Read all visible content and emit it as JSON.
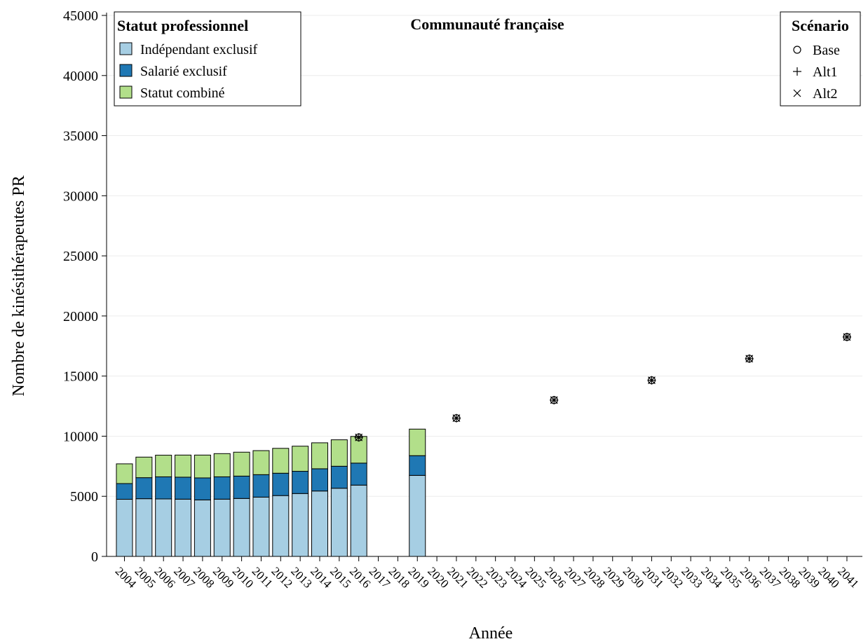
{
  "chart_data": {
    "type": "bar",
    "stacked": true,
    "title": "Communauté française",
    "xlabel": "Année",
    "ylabel": "Nombre de kinésithérapeutes PR",
    "ylim": [
      0,
      45000
    ],
    "yticks": [
      0,
      5000,
      10000,
      15000,
      20000,
      25000,
      30000,
      35000,
      40000,
      45000
    ],
    "categories": [
      "2004",
      "2005",
      "2006",
      "2007",
      "2008",
      "2009",
      "2010",
      "2011",
      "2012",
      "2013",
      "2014",
      "2015",
      "2016",
      "2017",
      "2018",
      "2019",
      "2020",
      "2021",
      "2022",
      "2023",
      "2024",
      "2025",
      "2026",
      "2027",
      "2028",
      "2029",
      "2030",
      "2031",
      "2032",
      "2033",
      "2034",
      "2035",
      "2036",
      "2037",
      "2038",
      "2039",
      "2040",
      "2041"
    ],
    "series": [
      {
        "name": "Indépendant exclusif",
        "color": "#a6cee3",
        "values": [
          4750,
          4800,
          4780,
          4760,
          4700,
          4760,
          4820,
          4930,
          5060,
          5230,
          5440,
          5670,
          5930,
          null,
          null,
          6740,
          null,
          null,
          null,
          null,
          null,
          null,
          null,
          null,
          null,
          null,
          null,
          null,
          null,
          null,
          null,
          null,
          null,
          null,
          null,
          null,
          null,
          null
        ]
      },
      {
        "name": "Salarié exclusif",
        "color": "#1f78b4",
        "values": [
          1310,
          1750,
          1840,
          1830,
          1830,
          1860,
          1860,
          1870,
          1860,
          1850,
          1850,
          1830,
          1830,
          null,
          null,
          1640,
          null,
          null,
          null,
          null,
          null,
          null,
          null,
          null,
          null,
          null,
          null,
          null,
          null,
          null,
          null,
          null,
          null,
          null,
          null,
          null,
          null,
          null
        ]
      },
      {
        "name": "Statut combiné",
        "color": "#b2df8a",
        "values": [
          1640,
          1710,
          1800,
          1840,
          1900,
          1930,
          1990,
          2000,
          2070,
          2090,
          2160,
          2200,
          2220,
          null,
          null,
          2210,
          null,
          null,
          null,
          null,
          null,
          null,
          null,
          null,
          null,
          null,
          null,
          null,
          null,
          null,
          null,
          null,
          null,
          null,
          null,
          null,
          null,
          null
        ]
      }
    ],
    "scenarios": [
      {
        "name": "Base",
        "marker": "circle",
        "points": [
          {
            "x": "2016",
            "y": 9900
          },
          {
            "x": "2021",
            "y": 11500
          },
          {
            "x": "2026",
            "y": 13000
          },
          {
            "x": "2031",
            "y": 14650
          },
          {
            "x": "2036",
            "y": 16450
          },
          {
            "x": "2041",
            "y": 18250
          }
        ]
      },
      {
        "name": "Alt1",
        "marker": "plus",
        "points": [
          {
            "x": "2016",
            "y": 9900
          },
          {
            "x": "2021",
            "y": 11500
          },
          {
            "x": "2026",
            "y": 13000
          },
          {
            "x": "2031",
            "y": 14650
          },
          {
            "x": "2036",
            "y": 16450
          },
          {
            "x": "2041",
            "y": 18250
          }
        ]
      },
      {
        "name": "Alt2",
        "marker": "cross",
        "points": [
          {
            "x": "2016",
            "y": 9900
          },
          {
            "x": "2021",
            "y": 11500
          },
          {
            "x": "2026",
            "y": 13000
          },
          {
            "x": "2031",
            "y": 14650
          },
          {
            "x": "2036",
            "y": 16450
          },
          {
            "x": "2041",
            "y": 18250
          }
        ]
      }
    ],
    "legend_status": {
      "title": "Statut professionnel",
      "placement": "top-left"
    },
    "legend_scenario": {
      "title": "Scénario",
      "placement": "top-right"
    },
    "grid": true
  }
}
